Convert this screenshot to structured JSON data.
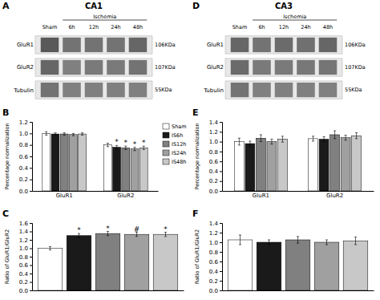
{
  "chart_data": [
    {
      "type": "heatmap",
      "panel_label": "A",
      "title": "CA1",
      "categories": [
        "Sham",
        "6h",
        "12h",
        "24h",
        "48h"
      ],
      "y_categories": [
        "GluR1",
        "GluR2",
        "Tubulin"
      ],
      "kda_labels": [
        "106KDa",
        "107KDa",
        "55KDa"
      ],
      "cells": [
        [
          0.35,
          0.45,
          0.45,
          0.45,
          0.4
        ],
        [
          0.4,
          0.5,
          0.48,
          0.48,
          0.45
        ],
        [
          0.45,
          0.5,
          0.5,
          0.5,
          0.5
        ]
      ],
      "annotations": [
        {
          "text": "Ischemia",
          "from": "6h",
          "to": "48h"
        }
      ]
    },
    {
      "type": "heatmap",
      "panel_label": "D",
      "title": "CA3",
      "categories": [
        "Sham",
        "6h",
        "12h",
        "24h",
        "48h"
      ],
      "y_categories": [
        "GluR1",
        "GluR2",
        "Tubulin"
      ],
      "kda_labels": [
        "106KDa",
        "107KDa",
        "55KDa"
      ],
      "cells": [
        [
          0.4,
          0.45,
          0.42,
          0.44,
          0.4
        ],
        [
          0.42,
          0.48,
          0.48,
          0.47,
          0.46
        ],
        [
          0.45,
          0.5,
          0.5,
          0.5,
          0.5
        ]
      ],
      "annotations": [
        {
          "text": "Ischemia",
          "from": "6h",
          "to": "48h"
        }
      ]
    },
    {
      "type": "bar",
      "panel_label": "B",
      "ylabel": "Percentage normalization",
      "categories": [
        "GluR1",
        "GluR2"
      ],
      "ylim": [
        0,
        1.2
      ],
      "yticks": [
        {
          "value": 0,
          "label": "0.0"
        },
        0.2,
        0.4,
        0.6,
        0.8,
        {
          "value": 1.0,
          "label": "1.0"
        },
        1.2
      ],
      "legend": "right",
      "series": [
        {
          "name": "Sham",
          "color": "#ffffff",
          "values": [
            1.0,
            0.8
          ],
          "errors": [
            0.03,
            0.03
          ],
          "sig_labels": [
            null,
            null
          ]
        },
        {
          "name": "IS6h",
          "color": "#1a1a1a",
          "values": [
            0.99,
            0.76
          ],
          "errors": [
            0.02,
            0.03
          ],
          "sig_labels": [
            null,
            "*"
          ]
        },
        {
          "name": "IS12h",
          "color": "#808080",
          "values": [
            0.99,
            0.75
          ],
          "errors": [
            0.02,
            0.03
          ],
          "sig_labels": [
            null,
            "*"
          ]
        },
        {
          "name": "IS24h",
          "color": "#a0a0a0",
          "values": [
            0.98,
            0.73
          ],
          "errors": [
            0.02,
            0.03
          ],
          "sig_labels": [
            null,
            "*"
          ]
        },
        {
          "name": "IS48h",
          "color": "#c8c8c8",
          "values": [
            0.99,
            0.75
          ],
          "errors": [
            0.02,
            0.03
          ],
          "sig_labels": [
            null,
            "*"
          ]
        }
      ]
    },
    {
      "type": "bar",
      "panel_label": "E",
      "ylabel": "Percentage normalization",
      "categories": [
        "GluR1",
        "GluR2"
      ],
      "ylim": [
        0,
        1.4
      ],
      "yticks": [
        {
          "value": 0,
          "label": "0.0"
        },
        0.2,
        0.4,
        0.6,
        0.8,
        {
          "value": 1.0,
          "label": "1.0"
        },
        1.2,
        1.4
      ],
      "series": [
        {
          "color": "#ffffff",
          "values": [
            1.0,
            1.06
          ],
          "errors": [
            0.07,
            0.05
          ]
        },
        {
          "color": "#1a1a1a",
          "values": [
            0.96,
            1.05
          ],
          "errors": [
            0.05,
            0.05
          ]
        },
        {
          "color": "#808080",
          "values": [
            1.07,
            1.14
          ],
          "errors": [
            0.07,
            0.08
          ]
        },
        {
          "color": "#a0a0a0",
          "values": [
            1.0,
            1.08
          ],
          "errors": [
            0.05,
            0.05
          ]
        },
        {
          "color": "#c8c8c8",
          "values": [
            1.05,
            1.12
          ],
          "errors": [
            0.06,
            0.06
          ]
        }
      ]
    },
    {
      "type": "bar",
      "panel_label": "C",
      "ylabel": "Ratio of GluR1/GluR2",
      "ylim": [
        0,
        1.6
      ],
      "yticks": [
        {
          "value": 0,
          "label": "0.0"
        },
        0.2,
        0.4,
        0.6,
        0.8,
        {
          "value": 1.0,
          "label": "1.0"
        },
        1.2,
        1.4,
        1.6
      ],
      "tick_labels": "y",
      "colors": [
        "#ffffff",
        "#1a1a1a",
        "#808080",
        "#a0a0a0",
        "#c8c8c8"
      ],
      "values": [
        1.0,
        1.3,
        1.35,
        1.33,
        1.33
      ],
      "errors": [
        0.04,
        0.05,
        0.05,
        0.05,
        0.05
      ],
      "sig_labels": [
        null,
        "*",
        "*",
        "#",
        "*"
      ]
    },
    {
      "type": "bar",
      "panel_label": "F",
      "ylabel": "Ratio of GluR1/GluR2",
      "ylim": [
        0,
        1.4
      ],
      "yticks": [
        {
          "value": 0,
          "label": "0.0"
        },
        0.2,
        0.4,
        0.6,
        0.8,
        {
          "value": 1.0,
          "label": "1.0"
        },
        1.2,
        1.4
      ],
      "tick_labels": "y",
      "colors": [
        "#ffffff",
        "#1a1a1a",
        "#808080",
        "#a0a0a0",
        "#c8c8c8"
      ],
      "values": [
        1.05,
        1.0,
        1.05,
        1.0,
        1.03
      ],
      "errors": [
        0.1,
        0.05,
        0.07,
        0.05,
        0.08
      ]
    }
  ]
}
